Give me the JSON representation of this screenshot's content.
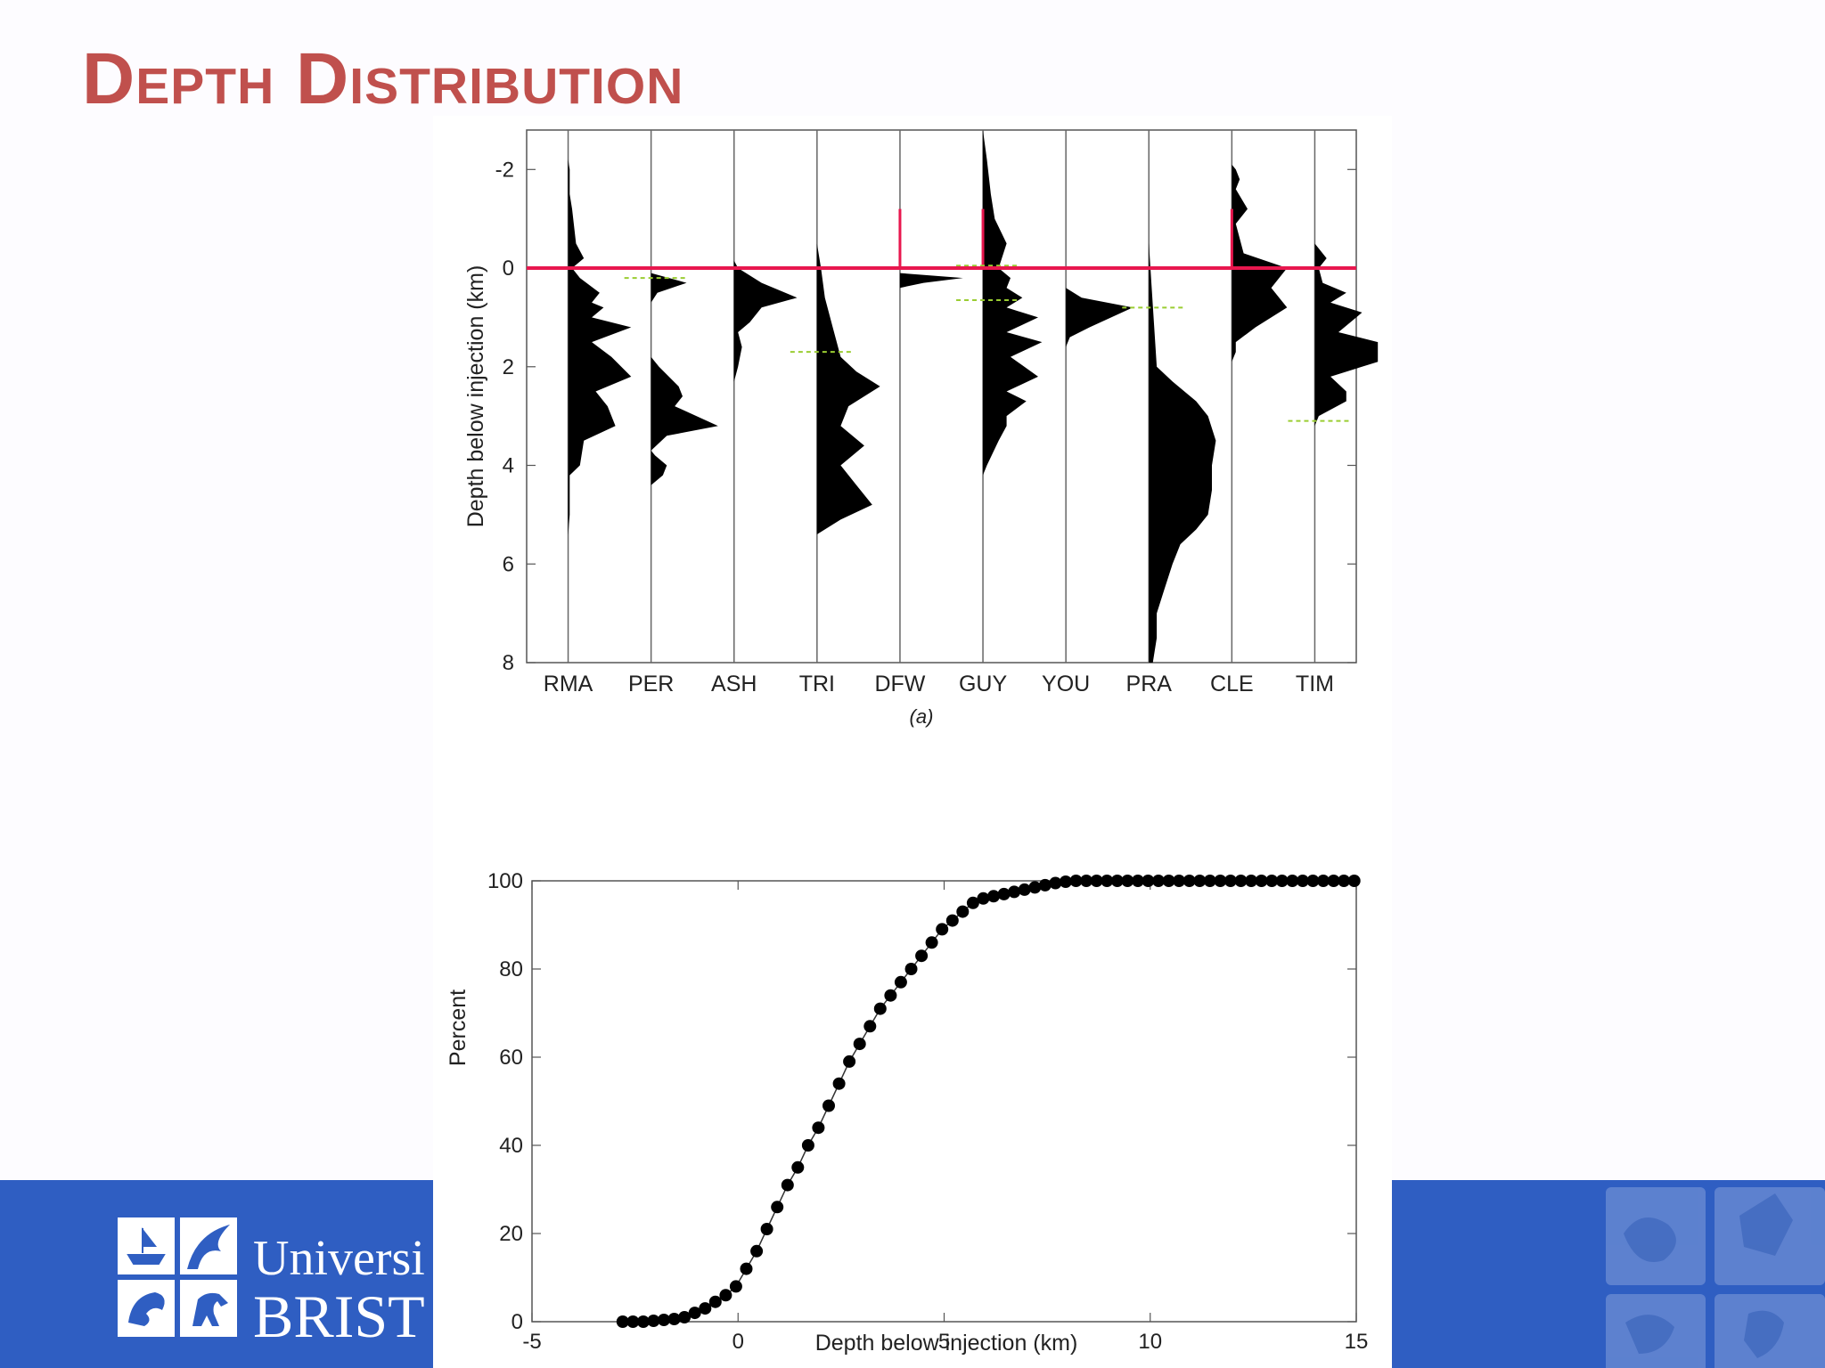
{
  "slide": {
    "title": "Depth Distribution"
  },
  "logo": {
    "line1": "Universi",
    "line2": "BRIST"
  },
  "chart_data": [
    {
      "type": "area",
      "subtype": "vertical depth histograms per site",
      "caption": "(a)",
      "ylabel": "Depth below injection (km)",
      "ylim": [
        -2.8,
        8
      ],
      "y_inverted": true,
      "yticks": [
        "-2",
        "0",
        "2",
        "4",
        "6",
        "8"
      ],
      "ytick_values": [
        -2,
        0,
        2,
        4,
        6,
        8
      ],
      "categories": [
        "RMA",
        "PER",
        "ASH",
        "TRI",
        "DFW",
        "GUY",
        "YOU",
        "PRA",
        "CLE",
        "TIM"
      ],
      "reference_line": {
        "depth": 0,
        "color": "#e8174e"
      },
      "colors": {
        "fill": "#000000",
        "injection_line": "#e8174e",
        "marker": "#9acd32"
      },
      "series": [
        {
          "category": "RMA",
          "profile": [
            [
              -2.2,
              0
            ],
            [
              -2,
              0.02
            ],
            [
              -1.5,
              0.02
            ],
            [
              -1.2,
              0.05
            ],
            [
              -0.5,
              0.1
            ],
            [
              -0.2,
              0.2
            ],
            [
              0,
              0.05
            ],
            [
              0.2,
              0.15
            ],
            [
              0.5,
              0.4
            ],
            [
              0.7,
              0.3
            ],
            [
              0.8,
              0.45
            ],
            [
              1,
              0.3
            ],
            [
              1.2,
              0.8
            ],
            [
              1.5,
              0.3
            ],
            [
              1.8,
              0.55
            ],
            [
              2.2,
              0.8
            ],
            [
              2.5,
              0.35
            ],
            [
              2.8,
              0.5
            ],
            [
              3.2,
              0.6
            ],
            [
              3.5,
              0.2
            ],
            [
              4,
              0.15
            ],
            [
              4.2,
              0.02
            ],
            [
              5,
              0.02
            ],
            [
              5.4,
              0
            ]
          ]
        },
        {
          "category": "PER",
          "profile": [
            [
              0.1,
              0
            ],
            [
              0.3,
              0.45
            ],
            [
              0.5,
              0.08
            ],
            [
              0.7,
              0
            ],
            [
              1.8,
              0
            ],
            [
              2,
              0.1
            ],
            [
              2.4,
              0.35
            ],
            [
              2.6,
              0.4
            ],
            [
              2.8,
              0.3
            ],
            [
              3.2,
              0.85
            ],
            [
              3.4,
              0.2
            ],
            [
              3.7,
              0
            ],
            [
              3.8,
              0.05
            ],
            [
              4,
              0.2
            ],
            [
              4.2,
              0.15
            ],
            [
              4.4,
              0
            ]
          ]
        },
        {
          "category": "ASH",
          "profile": [
            [
              -0.15,
              0
            ],
            [
              0,
              0.05
            ],
            [
              0.3,
              0.35
            ],
            [
              0.6,
              0.8
            ],
            [
              0.8,
              0.35
            ],
            [
              1.1,
              0.2
            ],
            [
              1.3,
              0.05
            ],
            [
              1.6,
              0.1
            ],
            [
              2,
              0.05
            ],
            [
              2.3,
              0
            ]
          ]
        },
        {
          "category": "TRI",
          "profile": [
            [
              -0.5,
              0
            ],
            [
              0,
              0.05
            ],
            [
              0.6,
              0.1
            ],
            [
              1.2,
              0.2
            ],
            [
              1.8,
              0.3
            ],
            [
              2.1,
              0.5
            ],
            [
              2.4,
              0.8
            ],
            [
              2.8,
              0.4
            ],
            [
              3.2,
              0.3
            ],
            [
              3.6,
              0.6
            ],
            [
              4,
              0.3
            ],
            [
              4.4,
              0.5
            ],
            [
              4.8,
              0.7
            ],
            [
              5.1,
              0.3
            ],
            [
              5.4,
              0
            ]
          ]
        },
        {
          "category": "DFW",
          "profile": [
            [
              0.1,
              0
            ],
            [
              0.2,
              0.8
            ],
            [
              0.3,
              0.3
            ],
            [
              0.4,
              0
            ]
          ]
        },
        {
          "category": "GUY",
          "profile": [
            [
              -2.8,
              0
            ],
            [
              -2.2,
              0.05
            ],
            [
              -1.5,
              0.1
            ],
            [
              -1,
              0.15
            ],
            [
              -0.5,
              0.3
            ],
            [
              0,
              0.2
            ],
            [
              0.2,
              0.35
            ],
            [
              0.4,
              0.3
            ],
            [
              0.6,
              0.5
            ],
            [
              0.8,
              0.3
            ],
            [
              1,
              0.7
            ],
            [
              1.3,
              0.3
            ],
            [
              1.5,
              0.75
            ],
            [
              1.8,
              0.35
            ],
            [
              2.2,
              0.7
            ],
            [
              2.5,
              0.3
            ],
            [
              2.7,
              0.55
            ],
            [
              3,
              0.3
            ],
            [
              3.2,
              0.3
            ],
            [
              3.5,
              0.2
            ],
            [
              4,
              0.05
            ],
            [
              4.2,
              0
            ]
          ]
        },
        {
          "category": "YOU",
          "profile": [
            [
              0.4,
              0
            ],
            [
              0.6,
              0.2
            ],
            [
              0.8,
              0.85
            ],
            [
              1.2,
              0.3
            ],
            [
              1.4,
              0.05
            ],
            [
              1.6,
              0
            ]
          ]
        },
        {
          "category": "PRA",
          "profile": [
            [
              -0.5,
              0
            ],
            [
              0,
              0.02
            ],
            [
              2,
              0.1
            ],
            [
              2.3,
              0.3
            ],
            [
              2.7,
              0.6
            ],
            [
              3,
              0.75
            ],
            [
              3.5,
              0.85
            ],
            [
              4,
              0.8
            ],
            [
              4.5,
              0.8
            ],
            [
              5,
              0.75
            ],
            [
              5.3,
              0.6
            ],
            [
              5.6,
              0.4
            ],
            [
              6,
              0.3
            ],
            [
              6.5,
              0.2
            ],
            [
              7,
              0.1
            ],
            [
              7.5,
              0.1
            ],
            [
              8,
              0.05
            ]
          ]
        },
        {
          "category": "CLE",
          "profile": [
            [
              -2.1,
              0
            ],
            [
              -2,
              0.05
            ],
            [
              -1.8,
              0.1
            ],
            [
              -1.6,
              0.05
            ],
            [
              -1.2,
              0.2
            ],
            [
              -0.9,
              0.05
            ],
            [
              -0.3,
              0.15
            ],
            [
              0,
              0.7
            ],
            [
              0.4,
              0.5
            ],
            [
              0.8,
              0.7
            ],
            [
              1.2,
              0.3
            ],
            [
              1.5,
              0.05
            ],
            [
              1.7,
              0.05
            ],
            [
              1.9,
              0
            ]
          ]
        },
        {
          "category": "TIM",
          "profile": [
            [
              -0.5,
              0
            ],
            [
              -0.2,
              0.15
            ],
            [
              0,
              0.05
            ],
            [
              0.3,
              0.1
            ],
            [
              0.5,
              0.4
            ],
            [
              0.7,
              0.2
            ],
            [
              0.9,
              0.6
            ],
            [
              1.3,
              0.3
            ],
            [
              1.5,
              0.8
            ],
            [
              1.9,
              0.8
            ],
            [
              2.2,
              0.2
            ],
            [
              2.5,
              0.4
            ],
            [
              2.7,
              0.4
            ],
            [
              3,
              0.05
            ],
            [
              3.2,
              0
            ]
          ]
        }
      ],
      "markers": [
        {
          "category": "PER",
          "depth": 0.2
        },
        {
          "category": "TRI",
          "depth": 1.7
        },
        {
          "category": "GUY",
          "depth": 0.65
        },
        {
          "category": "GUY",
          "depth": -0.05
        },
        {
          "category": "PRA",
          "depth": 0.8
        },
        {
          "category": "TIM",
          "depth": 3.1
        }
      ]
    },
    {
      "type": "line",
      "subtype": "cumulative distribution with markers",
      "xlabel": "Depth below injection (km)",
      "ylabel": "Percent",
      "xlim": [
        -5,
        15
      ],
      "ylim": [
        0,
        100
      ],
      "xticks": [
        "-5",
        "0",
        "5",
        "10",
        "15"
      ],
      "xtick_values": [
        -5,
        0,
        5,
        10,
        15
      ],
      "yticks": [
        "0",
        "20",
        "40",
        "60",
        "80",
        "100"
      ],
      "ytick_values": [
        0,
        20,
        40,
        60,
        80,
        100
      ],
      "colors": {
        "marker": "#000000",
        "line": "#333333"
      },
      "series": [
        {
          "x": [
            -2.8,
            -2.55,
            -2.3,
            -2.05,
            -1.8,
            -1.55,
            -1.3,
            -1.05,
            -0.8,
            -0.55,
            -0.3,
            -0.05,
            0.2,
            0.45,
            0.7,
            0.95,
            1.2,
            1.45,
            1.7,
            1.95,
            2.2,
            2.45,
            2.7,
            2.95,
            3.2,
            3.45,
            3.7,
            3.95,
            4.2,
            4.45,
            4.7,
            4.95,
            5.2,
            5.45,
            5.7,
            5.95,
            6.2,
            6.45,
            6.7,
            6.95,
            7.2,
            7.45,
            7.7,
            7.95,
            8.2,
            8.45,
            8.7,
            8.95,
            9.2,
            9.45,
            9.7,
            9.95,
            10.2,
            10.45,
            10.7,
            10.95,
            11.2,
            11.45,
            11.7,
            11.95,
            12.2,
            12.45,
            12.7,
            12.95,
            13.2,
            13.45,
            13.7,
            13.95,
            14.2,
            14.45,
            14.7,
            14.95
          ],
          "y": [
            0,
            0,
            0,
            0.2,
            0.4,
            0.6,
            1,
            2,
            3,
            4.5,
            6,
            8,
            12,
            16,
            21,
            26,
            31,
            35,
            40,
            44,
            49,
            54,
            59,
            63,
            67,
            71,
            74,
            77,
            80,
            83,
            86,
            89,
            91,
            93,
            95,
            96,
            96.5,
            97,
            97.5,
            98,
            98.5,
            99,
            99.5,
            99.8,
            100,
            100,
            100,
            100,
            100,
            100,
            100,
            100,
            100,
            100,
            100,
            100,
            100,
            100,
            100,
            100,
            100,
            100,
            100,
            100,
            100,
            100,
            100,
            100,
            100,
            100,
            100,
            100
          ]
        }
      ]
    }
  ]
}
